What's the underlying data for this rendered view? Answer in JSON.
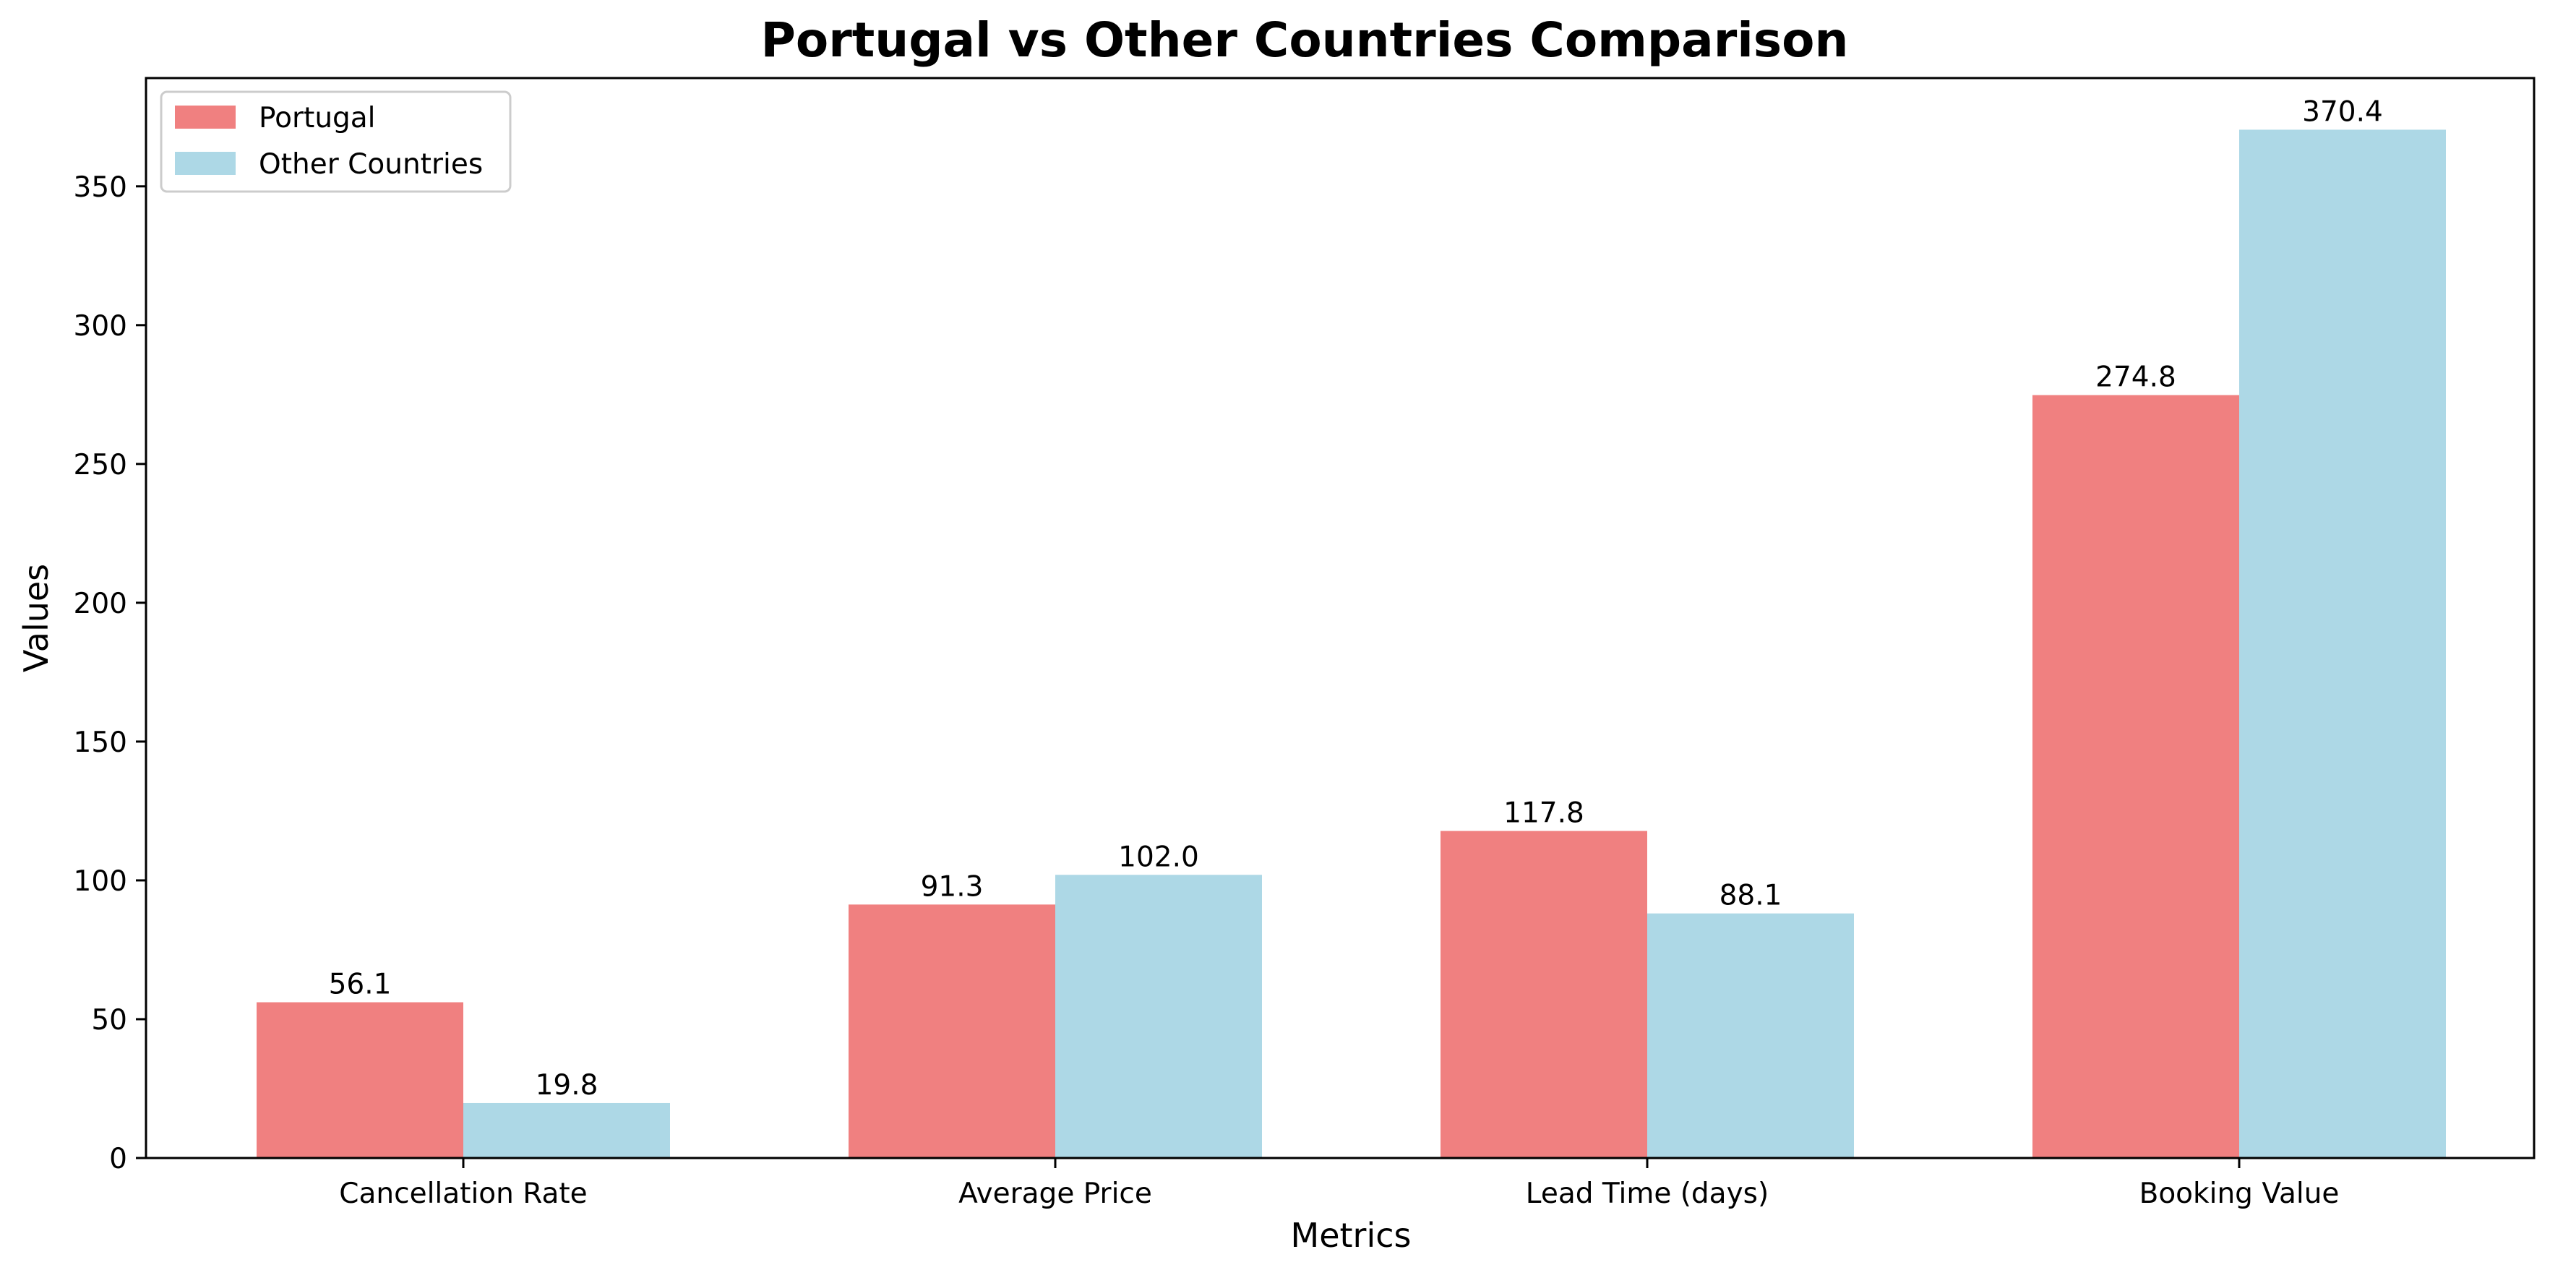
{
  "chart_data": {
    "type": "bar",
    "title": "Portugal vs Other Countries Comparison",
    "xlabel": "Metrics",
    "ylabel": "Values",
    "categories": [
      "Cancellation Rate",
      "Average Price",
      "Lead Time (days)",
      "Booking Value"
    ],
    "series": [
      {
        "name": "Portugal",
        "color": "#f08080",
        "values": [
          56.1,
          91.3,
          117.8,
          274.8
        ],
        "labels": [
          "56.1",
          "91.3",
          "117.8",
          "274.8"
        ]
      },
      {
        "name": "Other Countries",
        "color": "#add8e6",
        "values": [
          19.8,
          102.0,
          88.1,
          370.4
        ],
        "labels": [
          "19.8",
          "102.0",
          "88.1",
          "370.4"
        ]
      }
    ],
    "ylim": [
      0,
      389
    ],
    "yticks": [
      0,
      50,
      100,
      150,
      200,
      250,
      300,
      350
    ],
    "grid": false,
    "legend_position": "top-left"
  }
}
